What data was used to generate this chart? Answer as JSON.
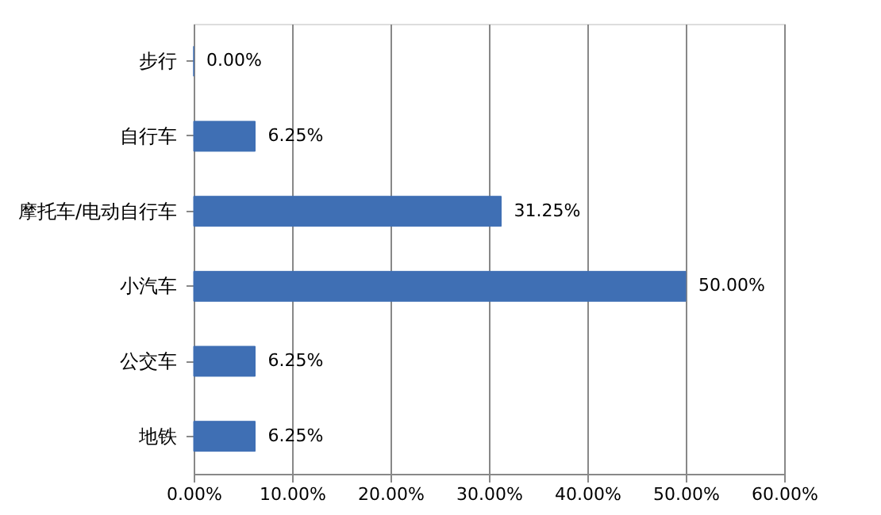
{
  "chart_data": {
    "type": "bar",
    "orientation": "horizontal",
    "categories": [
      "步行",
      "自行车",
      "摩托车/电动自行车",
      "小汽车",
      "公交车",
      "地铁"
    ],
    "values": [
      0,
      6.25,
      31.25,
      50,
      6.25,
      6.25
    ],
    "value_labels": [
      "0.00%",
      "6.25%",
      "31.25%",
      "50.00%",
      "6.25%",
      "6.25%"
    ],
    "color": "#3f6fb4",
    "xlim": [
      0,
      60
    ],
    "xticks": [
      {
        "value": 0,
        "label": "0.00%"
      },
      {
        "value": 10,
        "label": "10.00%"
      },
      {
        "value": 20,
        "label": "20.00%"
      },
      {
        "value": 30,
        "label": "30.00%"
      },
      {
        "value": 40,
        "label": "40.00%"
      },
      {
        "value": 50,
        "label": "50.00%"
      },
      {
        "value": 60,
        "label": "60.00%"
      }
    ],
    "grid": "x"
  }
}
